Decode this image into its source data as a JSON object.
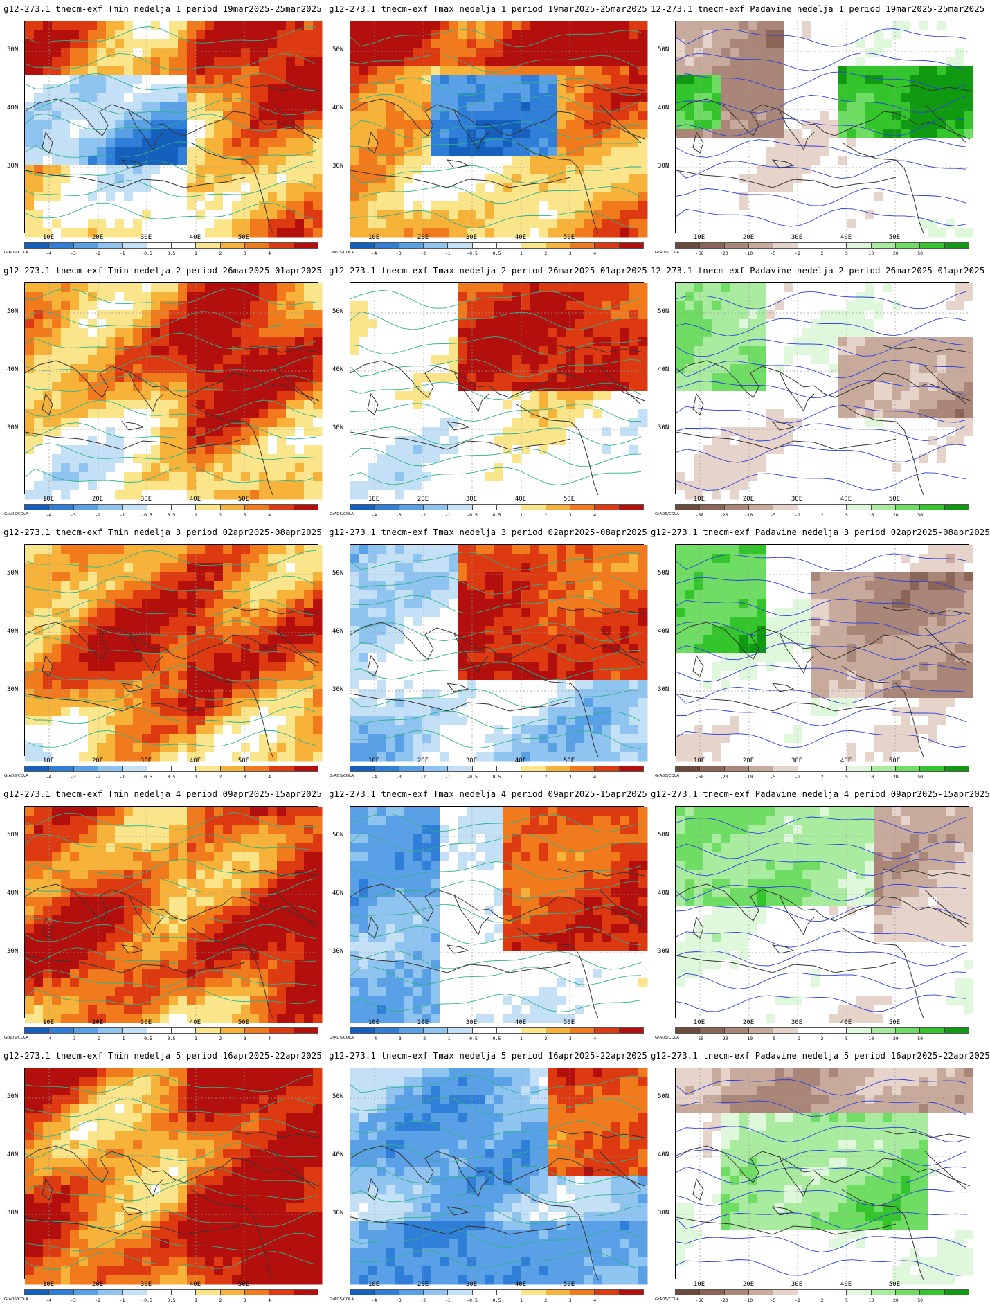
{
  "axes": {
    "lat_labels": [
      "50N",
      "40N",
      "30N"
    ],
    "lon_labels": [
      "10E",
      "20E",
      "30E",
      "40E",
      "50E"
    ]
  },
  "credit": "GrADS/COLA",
  "temp_scale": {
    "ticks": [
      "-4",
      "-3",
      "-2",
      "-1",
      "-0.5",
      "0.5",
      "1",
      "2",
      "3",
      "4"
    ],
    "colors": [
      "#1560bd",
      "#2f7fd8",
      "#5aa0e6",
      "#8fc3f0",
      "#c4e0f7",
      "#ffffff",
      "#ffffff",
      "#fbe58a",
      "#f7b23a",
      "#f07a1c",
      "#dd3a12",
      "#b3100d"
    ]
  },
  "precip_scale": {
    "ticks": [
      "-50",
      "-20",
      "-10",
      "-5",
      "-2",
      "2",
      "5",
      "10",
      "20",
      "50"
    ],
    "colors": [
      "#6b4a3c",
      "#8b6657",
      "#a98678",
      "#c8aa9d",
      "#e6d3ca",
      "#ffffff",
      "#ffffff",
      "#dff7da",
      "#a9ec9f",
      "#6fdc63",
      "#33c52b",
      "#109a12"
    ]
  },
  "panels": [
    {
      "title": "g12-273.1 tnecm-exf Tmin nedelja 1 period 19mar2025-25mar2025",
      "kind": "tmin",
      "week": 1
    },
    {
      "title": "g12-273.1 tnecm-exf Tmax nedelja 1 period 19mar2025-25mar2025",
      "kind": "tmax",
      "week": 1
    },
    {
      "title": "12-273.1 tnecm-exf Padavine nedelja 1 period 19mar2025-25mar2025",
      "kind": "precip",
      "week": 1
    },
    {
      "title": "g12-273.1 tnecm-exf Tmin nedelja 2 period 26mar2025-01apr2025",
      "kind": "tmin",
      "week": 2
    },
    {
      "title": "g12-273.1 tnecm-exf Tmax nedelja 2 period 26mar2025-01apr2025",
      "kind": "tmax",
      "week": 2
    },
    {
      "title": "12-273.1 tnecm-exf Padavine nedelja 2 period 26mar2025-01apr2025",
      "kind": "precip",
      "week": 2
    },
    {
      "title": "g12-273.1 tnecm-exf Tmin nedelja 3 period 02apr2025-08apr2025",
      "kind": "tmin",
      "week": 3
    },
    {
      "title": "g12-273.1 tnecm-exf Tmax nedelja 3 period 02apr2025-08apr2025",
      "kind": "tmax",
      "week": 3
    },
    {
      "title": "g12-273.1 tnecm-exf Padavine nedelja 3 period 02apr2025-08apr2025",
      "kind": "precip",
      "week": 3
    },
    {
      "title": "g12-273.1 tnecm-exf Tmin nedelja 4 period 09apr2025-15apr2025",
      "kind": "tmin",
      "week": 4
    },
    {
      "title": "g12-273.1 tnecm-exf Tmax nedelja 4 period 09apr2025-15apr2025",
      "kind": "tmax",
      "week": 4
    },
    {
      "title": "g12-273.1 tnecm-exf Padavine nedelja 4 period 09apr2025-15apr2025",
      "kind": "precip",
      "week": 4
    },
    {
      "title": "g12-273.1 tnecm-exf Tmin nedelja 5 period 16apr2025-22apr2025",
      "kind": "tmin",
      "week": 5
    },
    {
      "title": "g12-273.1 tnecm-exf Tmax nedelja 5 period 16apr2025-22apr2025",
      "kind": "tmax",
      "week": 5
    },
    {
      "title": "g12-273.1 tnecm-exf Padavine nedelja 5 period 16apr2025-22apr2025",
      "kind": "precip",
      "week": 5
    }
  ]
}
